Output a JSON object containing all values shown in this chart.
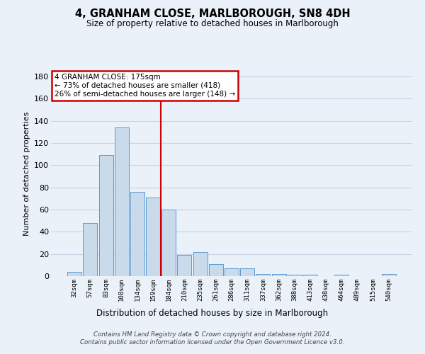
{
  "title": "4, GRANHAM CLOSE, MARLBOROUGH, SN8 4DH",
  "subtitle": "Size of property relative to detached houses in Marlborough",
  "xlabel": "Distribution of detached houses by size in Marlborough",
  "ylabel": "Number of detached properties",
  "categories": [
    "32sqm",
    "57sqm",
    "83sqm",
    "108sqm",
    "134sqm",
    "159sqm",
    "184sqm",
    "210sqm",
    "235sqm",
    "261sqm",
    "286sqm",
    "311sqm",
    "337sqm",
    "362sqm",
    "388sqm",
    "413sqm",
    "438sqm",
    "464sqm",
    "489sqm",
    "515sqm",
    "540sqm"
  ],
  "values": [
    4,
    48,
    109,
    134,
    76,
    71,
    60,
    19,
    22,
    11,
    7,
    7,
    2,
    2,
    1,
    1,
    0,
    1,
    0,
    0,
    2
  ],
  "bar_color": "#c9daea",
  "bar_edge_color": "#5b9bd5",
  "grid_color": "#c8d4e3",
  "vline_x": 5.5,
  "vline_color": "#cc0000",
  "annotation_line1": "4 GRANHAM CLOSE: 175sqm",
  "annotation_line2": "← 73% of detached houses are smaller (418)",
  "annotation_line3": "26% of semi-detached houses are larger (148) →",
  "annotation_box_color": "#cc0000",
  "ylim": [
    0,
    185
  ],
  "yticks": [
    0,
    20,
    40,
    60,
    80,
    100,
    120,
    140,
    160,
    180
  ],
  "footnote": "Contains HM Land Registry data © Crown copyright and database right 2024.\nContains public sector information licensed under the Open Government Licence v3.0.",
  "bg_color": "#eaf1f8",
  "plot_bg_color": "#eaf1f8"
}
